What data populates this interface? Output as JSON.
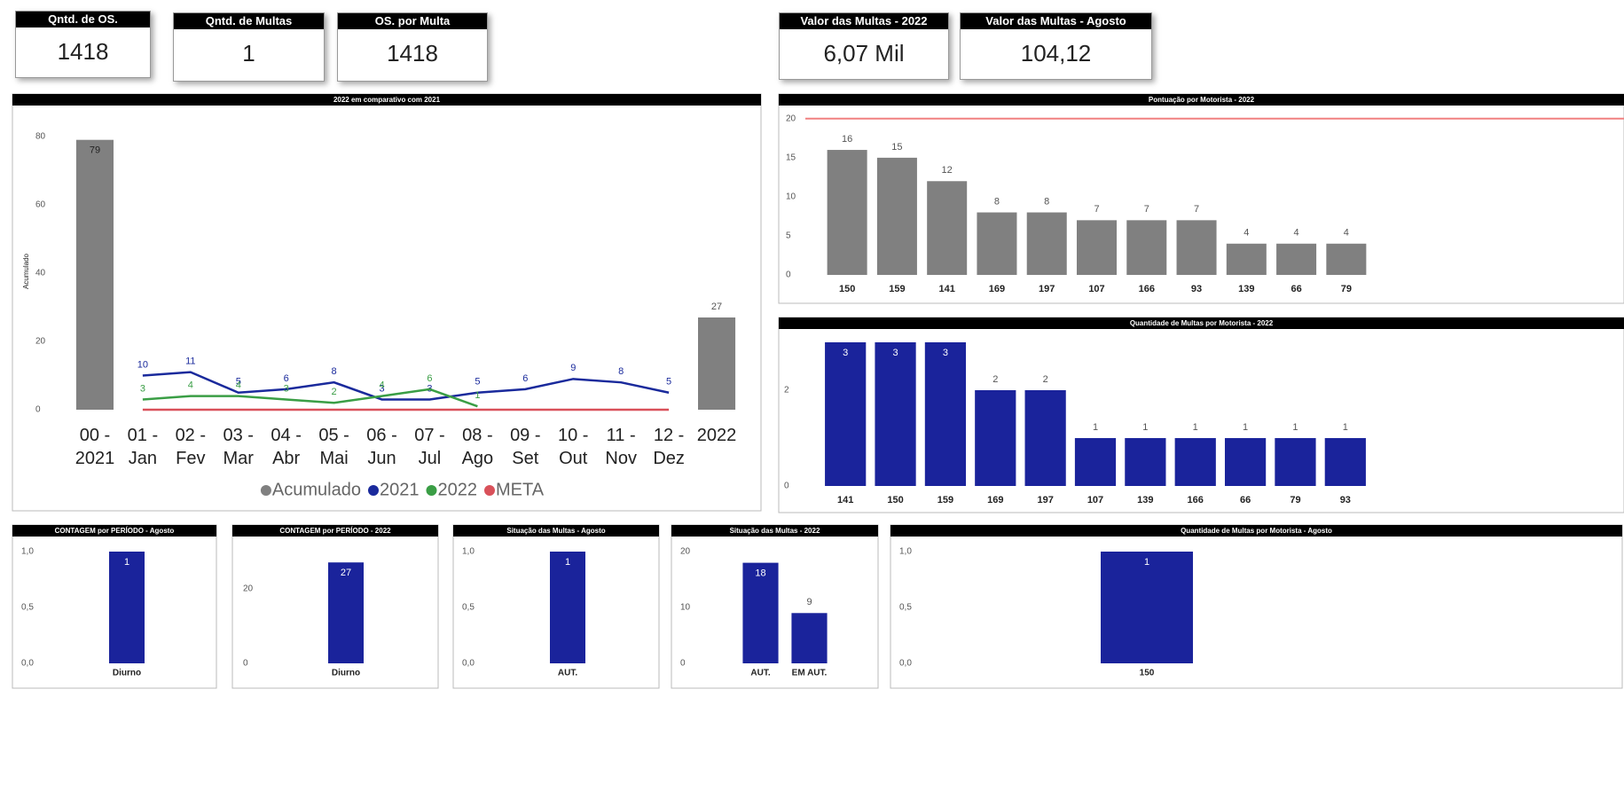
{
  "cards": [
    {
      "title": "Qntd. de OS.",
      "value": 1418
    },
    {
      "title": "Qntd. de Multas",
      "value": 1
    },
    {
      "title": "OS. por Multa",
      "value": 1418
    },
    {
      "title": "Valor das Multas - 2022",
      "value": "6,07 Mil"
    },
    {
      "title": "Valor das Multas - Agosto",
      "value": "104,12"
    }
  ],
  "chart_data": [
    {
      "type": "combo",
      "title": "2022 em comparativo com 2021",
      "y_label": "Acumulado",
      "categories": [
        "00 - 2021",
        "01 - Jan",
        "02 - Fev",
        "03 - Mar",
        "04 - Abr",
        "05 - Mai",
        "06 - Jun",
        "07 - Jul",
        "08 - Ago",
        "09 - Set",
        "10 - Out",
        "11 - Nov",
        "12 - Dez",
        "2022"
      ],
      "series": [
        {
          "name": "Acumulado",
          "color": "#808080",
          "mark": "bar",
          "values": [
            79,
            null,
            null,
            null,
            null,
            null,
            null,
            null,
            null,
            null,
            null,
            null,
            null,
            27
          ]
        },
        {
          "name": "2021",
          "color": "#1a2a9c",
          "mark": "line",
          "values": [
            null,
            10,
            11,
            5,
            6,
            8,
            3,
            3,
            5,
            6,
            9,
            8,
            5,
            null
          ]
        },
        {
          "name": "2022",
          "color": "#3a9e45",
          "mark": "line",
          "values": [
            null,
            3,
            4,
            4,
            3,
            2,
            4,
            6,
            1,
            null,
            null,
            null,
            null,
            null
          ]
        },
        {
          "name": "META",
          "color": "#d9515a",
          "mark": "line",
          "data_labels": false,
          "values": [
            null,
            0,
            0,
            0,
            0,
            0,
            0,
            0,
            0,
            0,
            0,
            0,
            0,
            null
          ]
        }
      ],
      "ylim": [
        0,
        81
      ],
      "yticks": [
        0,
        20,
        40,
        60,
        80
      ],
      "legend": "bottom"
    },
    {
      "type": "bar",
      "title": "Pontuação por Motorista - 2022",
      "categories": [
        "150",
        "159",
        "141",
        "169",
        "197",
        "107",
        "166",
        "93",
        "139",
        "66",
        "79"
      ],
      "values": [
        16,
        15,
        12,
        8,
        8,
        7,
        7,
        7,
        4,
        4,
        4
      ],
      "color": "#808080",
      "ylim": [
        0,
        21
      ],
      "yticks": [
        0,
        5,
        10,
        15,
        20
      ],
      "reference_line": {
        "value": 20,
        "color": "#f08080"
      }
    },
    {
      "type": "bar",
      "title": "Quantidade de Multas por Motorista - 2022",
      "categories": [
        "141",
        "150",
        "159",
        "169",
        "197",
        "107",
        "139",
        "166",
        "66",
        "79",
        "93"
      ],
      "values": [
        3,
        3,
        3,
        2,
        2,
        1,
        1,
        1,
        1,
        1,
        1
      ],
      "color": "#1a239b",
      "ylim": [
        0,
        3
      ],
      "yticks": [
        0,
        2
      ]
    },
    {
      "type": "bar",
      "title": "CONTAGEM por PERÍODO - Agosto",
      "categories": [
        "Diurno"
      ],
      "values": [
        1
      ],
      "color": "#1a239b",
      "ylim": [
        0,
        1
      ],
      "yticks": [
        {
          "value": 0,
          "label": "0,0"
        },
        {
          "value": 0.5,
          "label": "0,5"
        },
        {
          "value": 1,
          "label": "1,0"
        }
      ]
    },
    {
      "type": "bar",
      "title": "CONTAGEM por PERÍODO - 2022",
      "categories": [
        "Diurno"
      ],
      "values": [
        27
      ],
      "color": "#1a239b",
      "ylim": [
        0,
        28
      ],
      "yticks": [
        0,
        20
      ]
    },
    {
      "type": "bar",
      "title": "Situação das Multas - Agosto",
      "categories": [
        "AUT."
      ],
      "values": [
        1
      ],
      "color": "#1a239b",
      "ylim": [
        0,
        1
      ],
      "yticks": [
        {
          "value": 0,
          "label": "0,0"
        },
        {
          "value": 0.5,
          "label": "0,5"
        },
        {
          "value": 1,
          "label": "1,0"
        }
      ]
    },
    {
      "type": "bar",
      "title": "Situação das Multas - 2022",
      "categories": [
        "AUT.",
        "EM AUT."
      ],
      "values": [
        18,
        9
      ],
      "color": "#1a239b",
      "ylim": [
        0,
        20
      ],
      "yticks": [
        0,
        10,
        20
      ]
    },
    {
      "type": "bar",
      "title": "Quantidade de Multas por Motorista - Agosto",
      "categories": [
        "150"
      ],
      "values": [
        1
      ],
      "color": "#1a239b",
      "ylim": [
        0,
        1
      ],
      "yticks": [
        {
          "value": 0,
          "label": "0,0"
        },
        {
          "value": 0.5,
          "label": "0,5"
        },
        {
          "value": 1,
          "label": "1,0"
        }
      ]
    }
  ]
}
